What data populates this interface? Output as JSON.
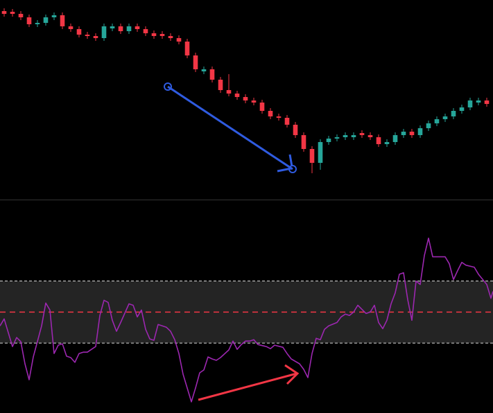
{
  "chart_data": [
    {
      "type": "candlestick",
      "up_color": "#26a69a",
      "down_color": "#f23645",
      "xlim": [
        -0.5,
        58.75
      ],
      "ylim": [
        0,
        288
      ],
      "open": [
        272,
        271,
        268,
        263,
        253,
        255,
        263,
        266,
        250,
        246,
        238,
        236,
        233,
        247,
        250,
        243,
        250,
        246,
        240,
        239,
        236,
        233,
        228,
        208,
        185,
        188,
        173,
        158,
        153,
        148,
        143,
        140,
        128,
        120,
        118,
        108,
        93,
        73,
        53,
        83,
        88,
        90,
        90,
        96,
        93,
        90,
        80,
        83,
        93,
        98,
        93,
        103,
        110,
        116,
        120,
        128,
        133,
        140,
        143
      ],
      "high": [
        276,
        275,
        272,
        267,
        259,
        267,
        270,
        270,
        254,
        250,
        242,
        240,
        254,
        254,
        254,
        254,
        254,
        250,
        244,
        243,
        240,
        237,
        232,
        212,
        192,
        192,
        177,
        181,
        157,
        152,
        147,
        144,
        132,
        124,
        122,
        112,
        97,
        77,
        87,
        92,
        94,
        97,
        97,
        100,
        97,
        94,
        87,
        97,
        102,
        102,
        107,
        114,
        120,
        124,
        132,
        137,
        147,
        147,
        147
      ],
      "low": [
        264,
        264,
        259,
        249,
        249,
        251,
        259,
        246,
        242,
        234,
        232,
        229,
        229,
        243,
        239,
        239,
        242,
        236,
        232,
        232,
        229,
        224,
        204,
        184,
        181,
        169,
        154,
        149,
        144,
        139,
        136,
        124,
        116,
        114,
        104,
        89,
        69,
        38,
        43,
        79,
        84,
        86,
        86,
        89,
        86,
        76,
        76,
        79,
        89,
        89,
        89,
        99,
        106,
        112,
        116,
        124,
        129,
        136,
        134
      ],
      "close": [
        268,
        268,
        263,
        253,
        255,
        263,
        266,
        250,
        246,
        238,
        236,
        233,
        250,
        250,
        243,
        250,
        246,
        240,
        236,
        236,
        233,
        228,
        208,
        188,
        188,
        173,
        158,
        153,
        148,
        143,
        140,
        128,
        120,
        118,
        108,
        93,
        73,
        53,
        83,
        88,
        90,
        93,
        93,
        93,
        90,
        80,
        83,
        93,
        98,
        93,
        103,
        110,
        116,
        120,
        128,
        133,
        143,
        143,
        138
      ]
    },
    {
      "type": "line",
      "color": "#9c27b0",
      "xlim": [
        -0.5,
        58.75
      ],
      "ylim": [
        -15,
        122
      ],
      "levels": [
        30,
        50,
        70
      ],
      "level_colors": [
        "#d9d9d9",
        "#f23645",
        "#d9d9d9"
      ],
      "band_color": "#242424",
      "x": [
        -0.5,
        0,
        1,
        1.5,
        2,
        2.5,
        3,
        3.5,
        4.5,
        5,
        5.5,
        6,
        6.5,
        7,
        7.5,
        8,
        8.5,
        9,
        9.5,
        10,
        11,
        11.5,
        12,
        12.5,
        13,
        13.5,
        14,
        15,
        15.5,
        16,
        16.5,
        17,
        17.5,
        18,
        18.5,
        19.5,
        20,
        20.5,
        21,
        21.5,
        22.5,
        23,
        23.5,
        24,
        24.5,
        25,
        25.5,
        26,
        27,
        27.5,
        28,
        28.5,
        29,
        29.5,
        30,
        30.5,
        31.5,
        32,
        32.5,
        33.5,
        34,
        34.5,
        35.5,
        36,
        36.5,
        37,
        37.5,
        38,
        38.5,
        39,
        40,
        40.5,
        41,
        41.5,
        42,
        42.5,
        43.5,
        44,
        44.5,
        45,
        45.5,
        46,
        46.5,
        47,
        47.5,
        48,
        48.5,
        49,
        49.5,
        50,
        50.5,
        51,
        51.5,
        52,
        53,
        53.5,
        54,
        54.5,
        55,
        55.5,
        56.5,
        57,
        58,
        58.5,
        58.75
      ],
      "values": [
        41.1,
        45.6,
        27.8,
        33.6,
        30.9,
        16.7,
        6.4,
        21.1,
        41.1,
        55.8,
        51.3,
        23.3,
        28.7,
        29.6,
        21.6,
        20.7,
        17.6,
        23.3,
        24.2,
        24.2,
        27.8,
        47.8,
        57.6,
        56.2,
        44.7,
        37.6,
        43.3,
        55.3,
        54.4,
        46.9,
        51.3,
        38.9,
        32.7,
        31.8,
        42,
        40.2,
        37.6,
        32.2,
        23.3,
        10,
        -7.8,
        1.1,
        10.9,
        12.7,
        21.1,
        19.8,
        18.9,
        20.7,
        25.6,
        31.3,
        26,
        29.1,
        31.3,
        31.3,
        32.2,
        29.1,
        27.8,
        26.4,
        28.7,
        27.3,
        23.3,
        19.8,
        16.7,
        13.1,
        7.8,
        23.3,
        33.1,
        32.2,
        38.9,
        41.1,
        43.3,
        46.9,
        48.7,
        47.8,
        50,
        54.4,
        49.1,
        50,
        54.4,
        43.3,
        39.3,
        44.7,
        55.3,
        62.4,
        74.4,
        75.3,
        58,
        44.7,
        70,
        67.8,
        86.4,
        97.6,
        85.6,
        85.6,
        85.6,
        81.1,
        70.9,
        76.7,
        82,
        80.2,
        78.9,
        74.4,
        67.8,
        58.9,
        63.3
      ]
    }
  ]
}
